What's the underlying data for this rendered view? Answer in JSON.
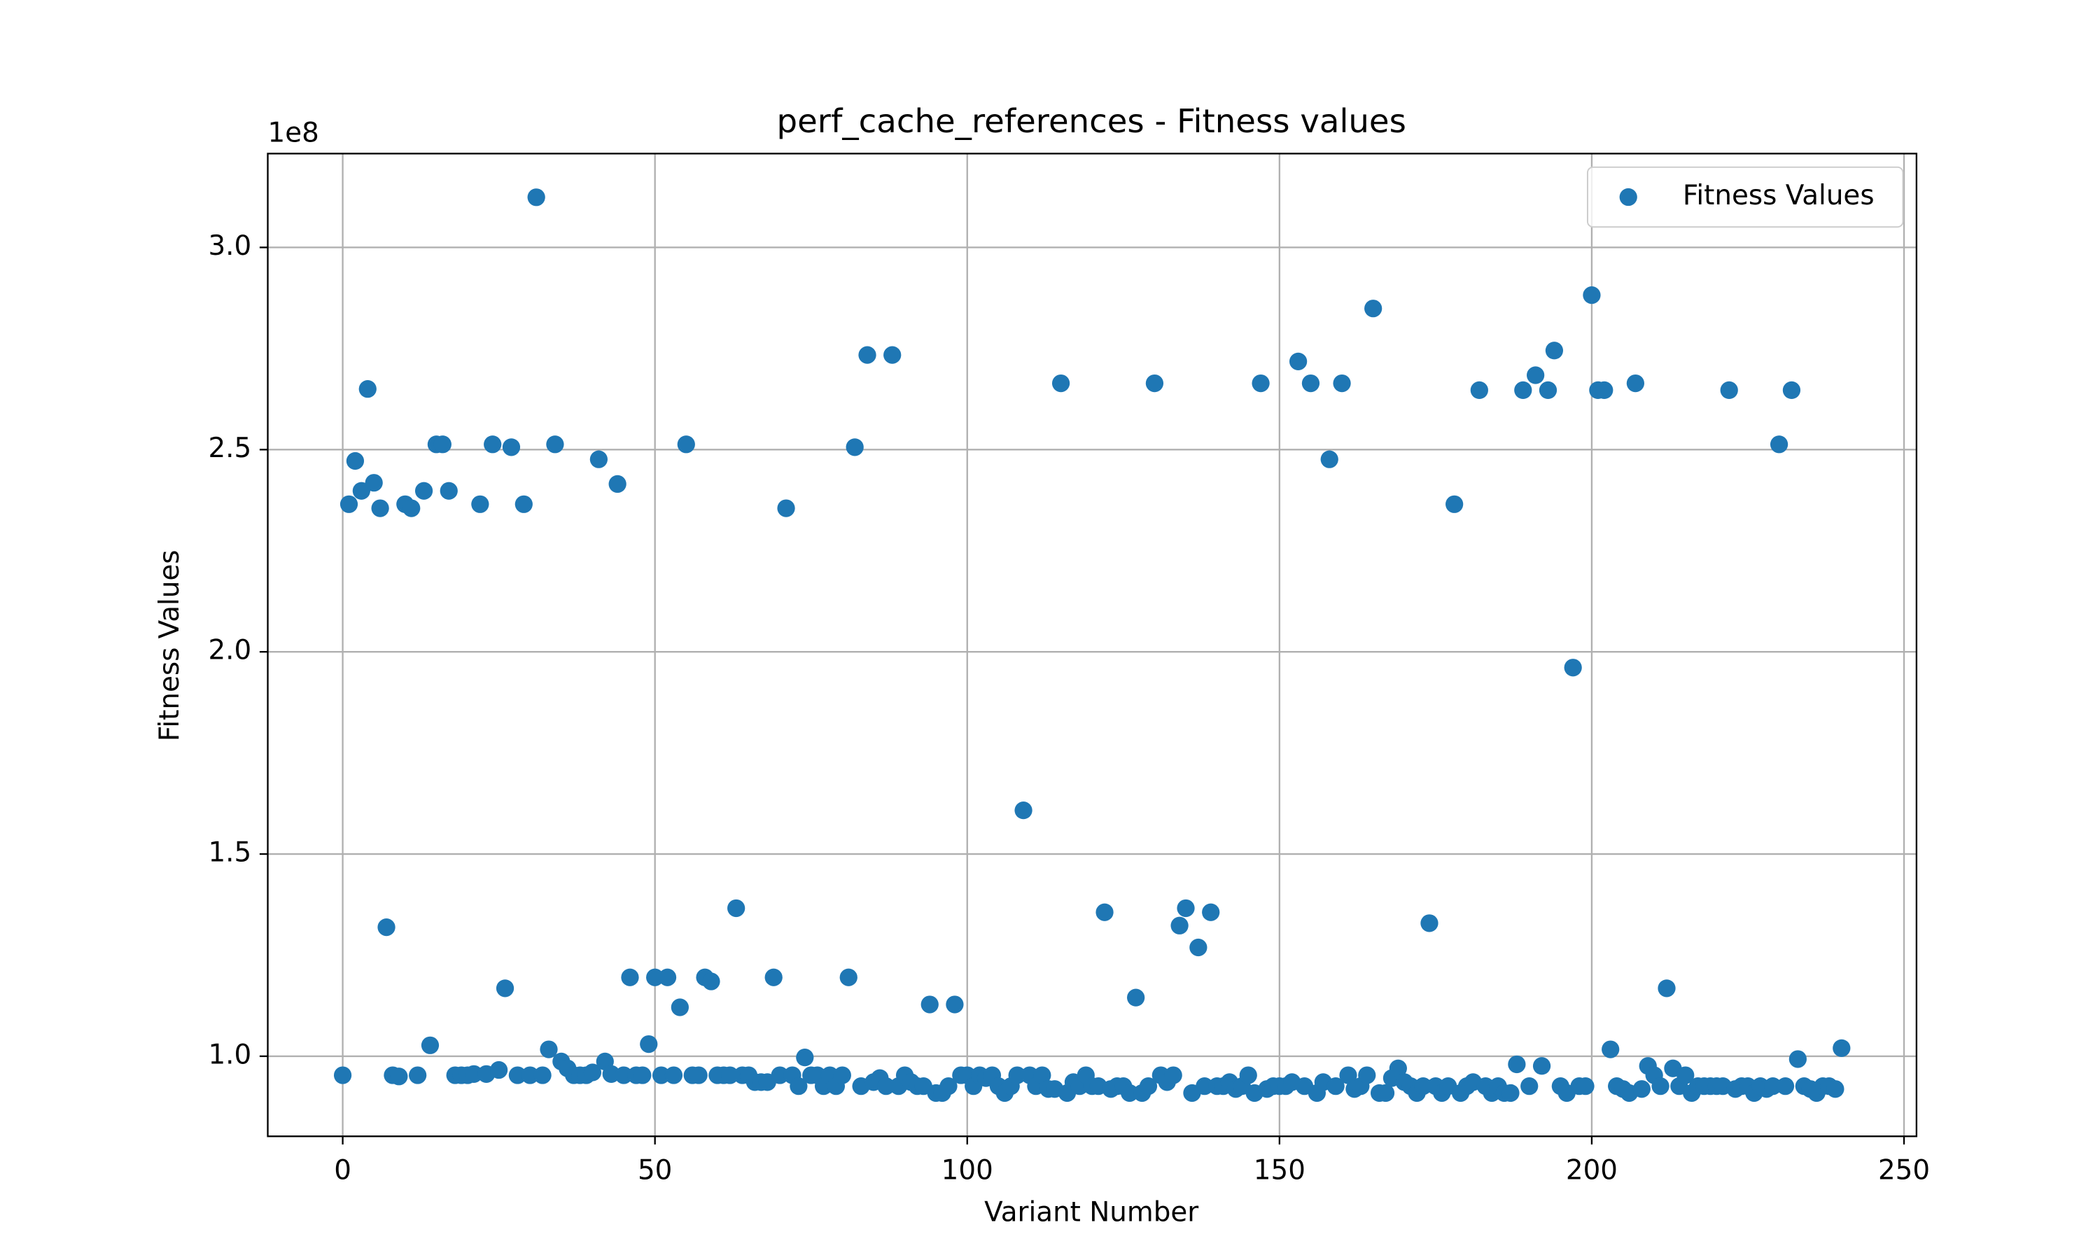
{
  "chart_data": {
    "type": "scatter",
    "title": "perf_cache_references - Fitness values",
    "x_label": "Variant Number",
    "y_label": "Fitness Values",
    "y_offset_label": "1e8",
    "legend_position": "upper right",
    "grid": true,
    "xlim": [
      -12,
      252
    ],
    "ylim": [
      80200000,
      323200000
    ],
    "xticks": [
      0,
      50,
      100,
      150,
      200,
      250
    ],
    "yticks": [
      {
        "value": 100000000,
        "label": "1.0"
      },
      {
        "value": 150000000,
        "label": "1.5"
      },
      {
        "value": 200000000,
        "label": "2.0"
      },
      {
        "value": 250000000,
        "label": "2.5"
      },
      {
        "value": 300000000,
        "label": "3.0"
      }
    ],
    "series": [
      {
        "name": "Fitness Values",
        "color": "#1f77b4",
        "x": [
          0,
          1,
          2,
          3,
          4,
          5,
          6,
          7,
          8,
          9,
          10,
          11,
          12,
          13,
          14,
          15,
          16,
          17,
          18,
          19,
          20,
          21,
          22,
          23,
          24,
          25,
          26,
          27,
          28,
          29,
          30,
          31,
          32,
          33,
          34,
          35,
          36,
          37,
          38,
          39,
          40,
          41,
          42,
          43,
          44,
          45,
          46,
          47,
          48,
          49,
          50,
          51,
          52,
          53,
          54,
          55,
          56,
          57,
          58,
          59,
          60,
          61,
          62,
          63,
          64,
          65,
          66,
          67,
          68,
          69,
          70,
          71,
          72,
          73,
          74,
          75,
          76,
          77,
          78,
          79,
          80,
          81,
          82,
          83,
          84,
          85,
          86,
          87,
          88,
          89,
          90,
          91,
          92,
          93,
          94,
          95,
          96,
          97,
          98,
          99,
          100,
          101,
          102,
          103,
          104,
          105,
          106,
          107,
          108,
          109,
          110,
          111,
          112,
          113,
          114,
          115,
          116,
          117,
          118,
          119,
          120,
          121,
          122,
          123,
          124,
          125,
          126,
          127,
          128,
          129,
          130,
          131,
          132,
          133,
          134,
          135,
          136,
          137,
          138,
          139,
          140,
          141,
          142,
          143,
          144,
          145,
          146,
          147,
          148,
          149,
          150,
          151,
          152,
          153,
          154,
          155,
          156,
          157,
          158,
          159,
          160,
          161,
          162,
          163,
          164,
          165,
          166,
          167,
          168,
          169,
          170,
          171,
          172,
          173,
          174,
          175,
          176,
          177,
          178,
          179,
          180,
          181,
          182,
          183,
          184,
          185,
          186,
          187,
          188,
          189,
          190,
          191,
          192,
          193,
          194,
          195,
          196,
          197,
          198,
          199,
          200,
          201,
          202,
          203,
          204,
          205,
          206,
          207,
          208,
          209,
          210,
          211,
          212,
          213,
          214,
          215,
          216,
          217,
          218,
          219,
          220,
          221,
          222,
          223,
          224,
          225,
          226,
          227,
          228,
          229,
          230,
          231,
          232,
          233,
          234,
          235,
          236,
          237,
          238,
          239,
          240
        ],
        "values": [
          95300000,
          236500000,
          247200000,
          239800000,
          265000000,
          241800000,
          235500000,
          131900000,
          95300000,
          95000000,
          236500000,
          235500000,
          95300000,
          239800000,
          102700000,
          251300000,
          251300000,
          239800000,
          95300000,
          95300000,
          95300000,
          95600000,
          236500000,
          95600000,
          251300000,
          96600000,
          116800000,
          250600000,
          95300000,
          236500000,
          95300000,
          312400000,
          95300000,
          101700000,
          251300000,
          98700000,
          97000000,
          95300000,
          95300000,
          95300000,
          96000000,
          247600000,
          98700000,
          95600000,
          241500000,
          95300000,
          119500000,
          95300000,
          95300000,
          103000000,
          119500000,
          95300000,
          119500000,
          95300000,
          112100000,
          251300000,
          95300000,
          95300000,
          119500000,
          118500000,
          95300000,
          95300000,
          95300000,
          136600000,
          95300000,
          95300000,
          93600000,
          93600000,
          93600000,
          119500000,
          95300000,
          235500000,
          95300000,
          92600000,
          99700000,
          95300000,
          95300000,
          92600000,
          95300000,
          92600000,
          95300000,
          119500000,
          250600000,
          92600000,
          273400000,
          93600000,
          94600000,
          92600000,
          273400000,
          92600000,
          95300000,
          93600000,
          92600000,
          92600000,
          112800000,
          90900000,
          90900000,
          92600000,
          112800000,
          95300000,
          95300000,
          92600000,
          95300000,
          94600000,
          95300000,
          92600000,
          90900000,
          92600000,
          95300000,
          160800000,
          95300000,
          92600000,
          95300000,
          91900000,
          91900000,
          266400000,
          90900000,
          93600000,
          92600000,
          95300000,
          92600000,
          92600000,
          135600000,
          91900000,
          92600000,
          92600000,
          90900000,
          114500000,
          90900000,
          92600000,
          266400000,
          95300000,
          93600000,
          95300000,
          132300000,
          136600000,
          90900000,
          126900000,
          92600000,
          135600000,
          92600000,
          92600000,
          93600000,
          91900000,
          92600000,
          95300000,
          90900000,
          266400000,
          91900000,
          92600000,
          92600000,
          92600000,
          93600000,
          271800000,
          92600000,
          266400000,
          90900000,
          93600000,
          247600000,
          92600000,
          266400000,
          95300000,
          91900000,
          92600000,
          95300000,
          284900000,
          90900000,
          90900000,
          94600000,
          97000000,
          93600000,
          92600000,
          90900000,
          92600000,
          132900000,
          92600000,
          90900000,
          92600000,
          236500000,
          90900000,
          92600000,
          93600000,
          264700000,
          92600000,
          90900000,
          92600000,
          90900000,
          90900000,
          98000000,
          264700000,
          92600000,
          268400000,
          97600000,
          264700000,
          274500000,
          92600000,
          90900000,
          196100000,
          92600000,
          92600000,
          288200000,
          264700000,
          264700000,
          101700000,
          92600000,
          91900000,
          90900000,
          266400000,
          91900000,
          97600000,
          95300000,
          92600000,
          116800000,
          97000000,
          92600000,
          95300000,
          90900000,
          92600000,
          92600000,
          92600000,
          92600000,
          92600000,
          264700000,
          91900000,
          92600000,
          92600000,
          90900000,
          92600000,
          91900000,
          92600000,
          251300000,
          92600000,
          264700000,
          99300000,
          92600000,
          91900000,
          90900000,
          92600000,
          92600000,
          91900000,
          102000000
        ]
      }
    ]
  }
}
